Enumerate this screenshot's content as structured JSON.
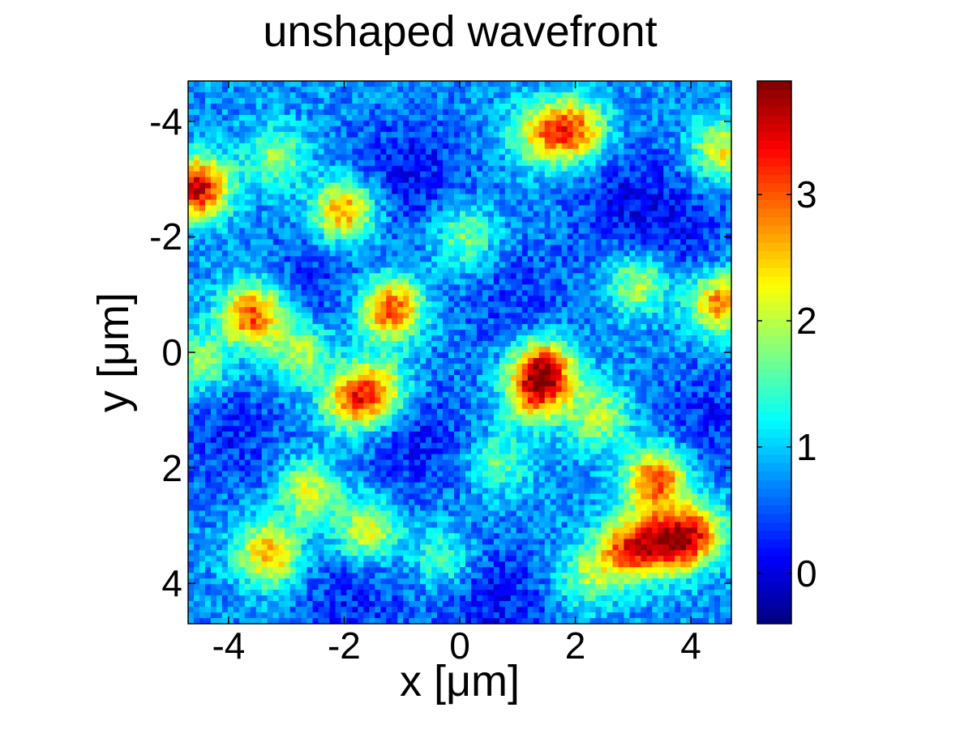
{
  "chart_data": {
    "type": "heatmap",
    "title": "unshaped wavefront",
    "xlabel": "x [μm]",
    "ylabel": "y [μm]",
    "xlim": [
      -4.7,
      4.7
    ],
    "ylim": [
      -4.7,
      4.7
    ],
    "y_axis_reversed": true,
    "x_ticks": [
      "-4",
      "-2",
      "0",
      "2",
      "4"
    ],
    "x_tick_values": [
      -4,
      -2,
      0,
      2,
      4
    ],
    "y_ticks": [
      "-4",
      "-2",
      "0",
      "2",
      "4"
    ],
    "y_tick_values": [
      -4,
      -2,
      0,
      2,
      4
    ],
    "colorbar": {
      "range": [
        -0.4,
        3.9
      ],
      "ticks": [
        "0",
        "1",
        "2",
        "3"
      ],
      "tick_values": [
        0,
        1,
        2,
        3
      ],
      "colormap": "jet"
    },
    "grid": false,
    "resolution": [
      96,
      96
    ],
    "background_level": 0.75,
    "hotspots": [
      {
        "x": -4.55,
        "y": -2.85,
        "value": 3.7
      },
      {
        "x": -2.0,
        "y": -2.45,
        "value": 2.9
      },
      {
        "x": -3.6,
        "y": -0.65,
        "value": 3.1
      },
      {
        "x": -1.2,
        "y": -0.75,
        "value": 3.2
      },
      {
        "x": 1.45,
        "y": 0.3,
        "value": 3.3
      },
      {
        "x": 4.5,
        "y": -0.85,
        "value": 2.9
      },
      {
        "x": 3.1,
        "y": -1.2,
        "value": 2.1
      },
      {
        "x": -1.85,
        "y": 0.85,
        "value": 2.6
      },
      {
        "x": -1.4,
        "y": 0.65,
        "value": 2.3
      },
      {
        "x": -2.75,
        "y": 0.0,
        "value": 2.0
      },
      {
        "x": 1.3,
        "y": 0.75,
        "value": 2.3
      },
      {
        "x": 2.4,
        "y": 1.1,
        "value": 2.0
      },
      {
        "x": 3.4,
        "y": 2.2,
        "value": 3.2
      },
      {
        "x": 2.9,
        "y": 3.4,
        "value": 2.9
      },
      {
        "x": 3.6,
        "y": 3.3,
        "value": 2.9
      },
      {
        "x": 4.1,
        "y": 3.15,
        "value": 2.6
      },
      {
        "x": -3.3,
        "y": 3.5,
        "value": 2.7
      },
      {
        "x": -2.6,
        "y": 2.4,
        "value": 2.2
      },
      {
        "x": -1.6,
        "y": 3.1,
        "value": 2.3
      },
      {
        "x": 2.0,
        "y": -3.85,
        "value": 2.8
      },
      {
        "x": 1.4,
        "y": -3.8,
        "value": 2.2
      },
      {
        "x": 0.1,
        "y": -2.0,
        "value": 1.8
      },
      {
        "x": 4.55,
        "y": -3.5,
        "value": 2.3
      },
      {
        "x": -4.5,
        "y": 0.2,
        "value": 1.9
      },
      {
        "x": -3.2,
        "y": -3.4,
        "value": 1.8
      },
      {
        "x": 0.7,
        "y": 1.9,
        "value": 1.6
      },
      {
        "x": -0.3,
        "y": 3.6,
        "value": 1.6
      },
      {
        "x": 2.2,
        "y": 3.9,
        "value": 1.8
      }
    ],
    "coldspots": [
      {
        "x": -0.9,
        "y": -3.1,
        "value": -0.2
      },
      {
        "x": 2.9,
        "y": -2.6,
        "value": -0.1
      },
      {
        "x": -4.0,
        "y": 1.4,
        "value": 0.0
      },
      {
        "x": -0.8,
        "y": 1.5,
        "value": -0.1
      },
      {
        "x": -1.9,
        "y": 4.2,
        "value": 0.0
      },
      {
        "x": 0.6,
        "y": 4.3,
        "value": -0.2
      },
      {
        "x": 4.3,
        "y": 1.2,
        "value": 0.0
      },
      {
        "x": 1.0,
        "y": -0.9,
        "value": 0.1
      },
      {
        "x": -2.4,
        "y": -1.3,
        "value": 0.1
      },
      {
        "x": 3.9,
        "y": -2.0,
        "value": 0.1
      }
    ]
  }
}
